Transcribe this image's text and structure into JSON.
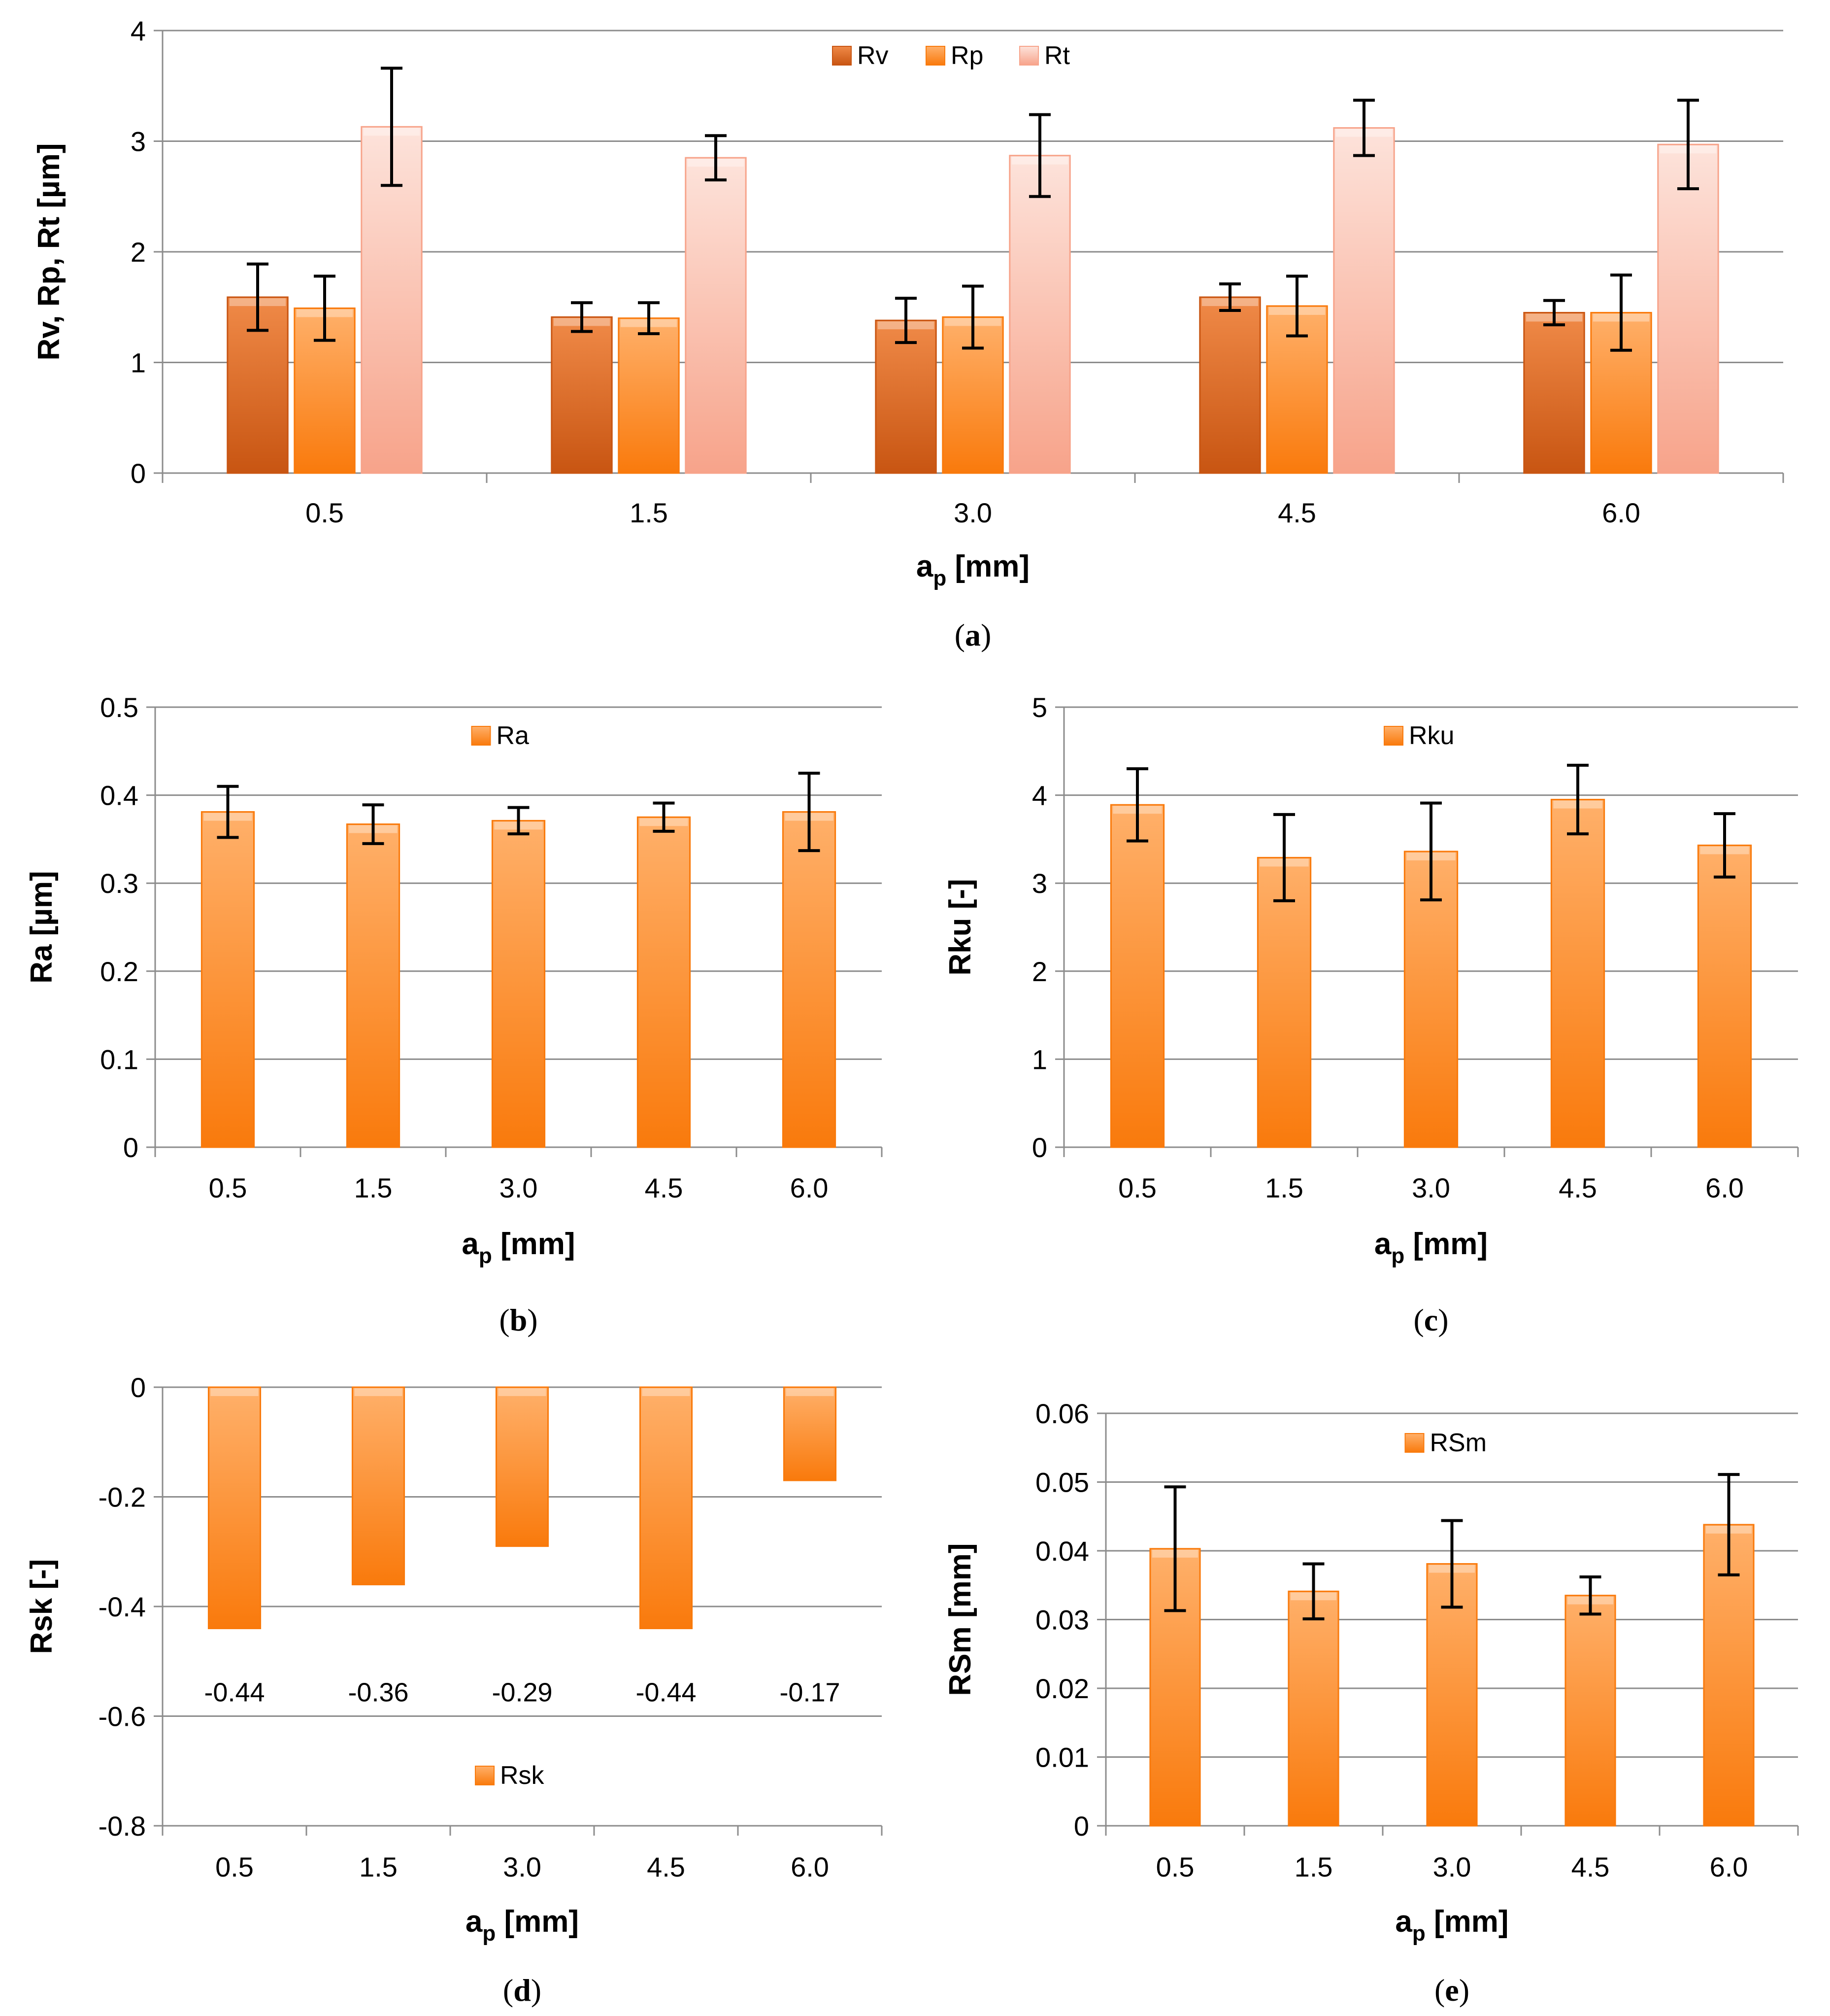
{
  "colors": {
    "rv_top": "#f08a48",
    "rv_bottom": "#c85512",
    "rp_top": "#ffb06a",
    "rp_bottom": "#f97a0c",
    "rt_top": "#fde3db",
    "rt_bottom": "#f7a38a",
    "grid": "#8c8c8c",
    "axis": "#8c8c8c",
    "error": "#000000"
  },
  "chart_data": [
    {
      "id": "a",
      "type": "bar",
      "caption": "(a)",
      "caption_letter": "a",
      "categories": [
        "0.5",
        "1.5",
        "3.0",
        "4.5",
        "6.0"
      ],
      "series": [
        {
          "name": "Rv",
          "values": [
            1.59,
            1.41,
            1.38,
            1.59,
            1.45
          ],
          "error": [
            0.3,
            0.13,
            0.2,
            0.12,
            0.11
          ]
        },
        {
          "name": "Rp",
          "values": [
            1.49,
            1.4,
            1.41,
            1.51,
            1.45
          ],
          "error": [
            0.29,
            0.14,
            0.28,
            0.27,
            0.34
          ]
        },
        {
          "name": "Rt",
          "values": [
            3.13,
            2.85,
            2.87,
            3.12,
            2.97
          ],
          "error": [
            0.53,
            0.2,
            0.37,
            0.25,
            0.4
          ]
        }
      ],
      "xlabel": "a",
      "xlabel_sub": "p",
      "xlabel_unit": " [mm]",
      "ylabel": "Rv, Rp, Rt [µm]",
      "ylim": [
        0,
        4
      ],
      "yticks": [
        "0",
        "1",
        "2",
        "3",
        "4"
      ],
      "legend_position": "top-center",
      "grid": true
    },
    {
      "id": "b",
      "type": "bar",
      "caption": "(b)",
      "caption_letter": "b",
      "categories": [
        "0.5",
        "1.5",
        "3.0",
        "4.5",
        "6.0"
      ],
      "series": [
        {
          "name": "Ra",
          "values": [
            0.381,
            0.367,
            0.371,
            0.375,
            0.381
          ],
          "error": [
            0.029,
            0.022,
            0.015,
            0.016,
            0.044
          ]
        }
      ],
      "xlabel": "a",
      "xlabel_sub": "p",
      "xlabel_unit": " [mm]",
      "ylabel": "Ra [µm]",
      "ylim": [
        0,
        0.5
      ],
      "yticks": [
        "0",
        "0.1",
        "0.2",
        "0.3",
        "0.4",
        "0.5"
      ],
      "legend_position": "top-center",
      "grid": true
    },
    {
      "id": "c",
      "type": "bar",
      "caption": "(c)",
      "caption_letter": "c",
      "categories": [
        "0.5",
        "1.5",
        "3.0",
        "4.5",
        "6.0"
      ],
      "series": [
        {
          "name": "Rku",
          "values": [
            3.89,
            3.29,
            3.36,
            3.95,
            3.43
          ],
          "error": [
            0.41,
            0.49,
            0.55,
            0.39,
            0.36
          ]
        }
      ],
      "xlabel": "a",
      "xlabel_sub": "p",
      "xlabel_unit": " [mm]",
      "ylabel": "Rku [-]",
      "ylim": [
        0,
        5
      ],
      "yticks": [
        "0",
        "1",
        "2",
        "3",
        "4",
        "5"
      ],
      "legend_position": "top-center",
      "grid": true
    },
    {
      "id": "d",
      "type": "bar",
      "caption": "(d)",
      "caption_letter": "d",
      "categories": [
        "0.5",
        "1.5",
        "3.0",
        "4.5",
        "6.0"
      ],
      "series": [
        {
          "name": "Rsk",
          "values": [
            -0.44,
            -0.36,
            -0.29,
            -0.44,
            -0.17
          ],
          "labels": [
            "-0.44",
            "-0.36",
            "-0.29",
            "-0.44",
            "-0.17"
          ]
        }
      ],
      "xlabel": "a",
      "xlabel_sub": "p",
      "xlabel_unit": " [mm]",
      "ylabel": "Rsk [-]",
      "ylim": [
        -0.8,
        0
      ],
      "yticks": [
        "-0.8",
        "-0.6",
        "-0.4",
        "-0.2",
        "0"
      ],
      "label_y": -0.555,
      "legend_position": "bottom-center",
      "grid": true
    },
    {
      "id": "e",
      "type": "bar",
      "caption": "(e)",
      "caption_letter": "e",
      "categories": [
        "0.5",
        "1.5",
        "3.0",
        "4.5",
        "6.0"
      ],
      "series": [
        {
          "name": "RSm",
          "values": [
            0.0403,
            0.0341,
            0.0381,
            0.0335,
            0.0438
          ],
          "error": [
            0.009,
            0.004,
            0.0063,
            0.0027,
            0.0073
          ]
        }
      ],
      "xlabel": "a",
      "xlabel_sub": "p",
      "xlabel_unit": " [mm]",
      "ylabel": "RSm [mm]",
      "ylim": [
        0,
        0.06
      ],
      "yticks": [
        "0",
        "0.01",
        "0.02",
        "0.03",
        "0.04",
        "0.05",
        "0.06"
      ],
      "legend_position": "top-center",
      "grid": true
    }
  ]
}
